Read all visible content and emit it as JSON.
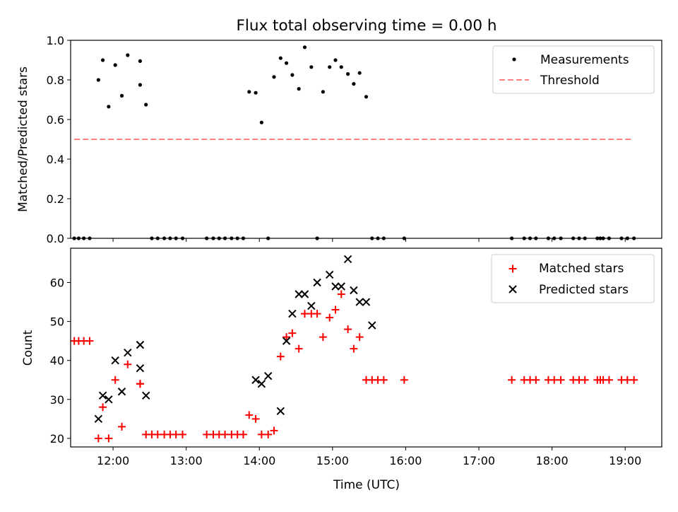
{
  "title": "Flux total observing time = 0.00 h",
  "chart_data": [
    {
      "type": "scatter",
      "panel": "top",
      "title": "Flux total observing time = 0.00 h",
      "ylabel": "Matched/Predicted stars",
      "xlabel": "",
      "xlim": [
        11.42,
        19.5
      ],
      "ylim": [
        0,
        1.0
      ],
      "yticks": [
        0.0,
        0.2,
        0.4,
        0.6,
        0.8,
        1.0
      ],
      "ytick_labels": [
        "0.0",
        "0.2",
        "0.4",
        "0.6",
        "0.8",
        "1.0"
      ],
      "legend_position": "top-right",
      "legend": [
        "Measurements",
        "Threshold"
      ],
      "threshold": {
        "name": "Threshold",
        "y": 0.5,
        "x": [
          11.47,
          19.08
        ],
        "color": "#ff8080"
      },
      "series": [
        {
          "name": "Measurements",
          "color": "#000000",
          "x": [
            11.47,
            11.53,
            11.6,
            11.68,
            11.8,
            11.86,
            11.94,
            12.03,
            12.12,
            12.2,
            12.37,
            12.37,
            12.45,
            12.53,
            12.61,
            12.7,
            12.78,
            12.86,
            12.95,
            13.28,
            13.37,
            13.45,
            13.53,
            13.62,
            13.7,
            13.78,
            13.86,
            13.95,
            14.03,
            14.12,
            14.2,
            14.29,
            14.37,
            14.45,
            14.54,
            14.62,
            14.71,
            14.79,
            14.87,
            14.96,
            15.04,
            15.12,
            15.21,
            15.29,
            15.37,
            15.46,
            15.54,
            15.62,
            15.7,
            15.98,
            17.45,
            17.62,
            17.7,
            17.78,
            17.95,
            18.03,
            18.12,
            18.29,
            18.37,
            18.45,
            18.62,
            18.66,
            18.7,
            18.78,
            18.95,
            19.03,
            19.12
          ],
          "y": [
            0,
            0,
            0,
            0,
            0.8,
            0.9,
            0.665,
            0.875,
            0.72,
            0.925,
            0.775,
            0.895,
            0.675,
            0,
            0,
            0,
            0,
            0,
            0,
            0,
            0,
            0,
            0,
            0,
            0,
            0,
            0.74,
            0.735,
            0.585,
            0,
            0.815,
            0.91,
            0.885,
            0.825,
            0.755,
            0.965,
            0.865,
            0,
            0.74,
            0.865,
            0.9,
            0.865,
            0.83,
            0.78,
            0.835,
            0.715,
            0,
            0,
            0,
            0,
            0,
            0,
            0,
            0,
            0,
            0,
            0,
            0,
            0,
            0,
            0,
            0,
            0,
            0,
            0,
            0,
            0
          ]
        }
      ]
    },
    {
      "type": "scatter",
      "panel": "bottom",
      "xlabel": "Time (UTC)",
      "ylabel": "Count",
      "xlim": [
        11.42,
        19.5
      ],
      "ylim": [
        17.8,
        68.8
      ],
      "xticks": [
        12,
        13,
        14,
        15,
        16,
        17,
        18,
        19
      ],
      "xtick_labels": [
        "12:00",
        "13:00",
        "14:00",
        "15:00",
        "16:00",
        "17:00",
        "18:00",
        "19:00"
      ],
      "yticks": [
        20,
        30,
        40,
        50,
        60
      ],
      "ytick_labels": [
        "20",
        "30",
        "40",
        "50",
        "60"
      ],
      "legend_position": "top-right",
      "legend": [
        "Matched stars",
        "Predicted stars"
      ],
      "series": [
        {
          "name": "Matched stars",
          "marker": "plus",
          "color": "#ff0000",
          "x": [
            11.47,
            11.53,
            11.6,
            11.68,
            11.8,
            11.86,
            11.94,
            12.03,
            12.12,
            12.2,
            12.37,
            12.37,
            12.45,
            12.53,
            12.61,
            12.7,
            12.78,
            12.86,
            12.95,
            13.28,
            13.37,
            13.45,
            13.53,
            13.62,
            13.7,
            13.78,
            13.86,
            13.95,
            14.03,
            14.12,
            14.2,
            14.29,
            14.37,
            14.45,
            14.54,
            14.62,
            14.71,
            14.79,
            14.87,
            14.96,
            15.04,
            15.12,
            15.21,
            15.29,
            15.37,
            15.46,
            15.54,
            15.62,
            15.7,
            15.98,
            17.45,
            17.62,
            17.7,
            17.78,
            17.95,
            18.03,
            18.12,
            18.29,
            18.37,
            18.45,
            18.62,
            18.66,
            18.7,
            18.78,
            18.95,
            19.03,
            19.12
          ],
          "y": [
            45,
            45,
            45,
            45,
            20,
            28,
            20,
            35,
            23,
            39,
            34,
            34,
            21,
            21,
            21,
            21,
            21,
            21,
            21,
            21,
            21,
            21,
            21,
            21,
            21,
            21,
            26,
            25,
            21,
            21,
            22,
            41,
            46,
            47,
            43,
            52,
            52,
            52,
            46,
            51,
            53,
            57,
            48,
            43,
            46,
            35,
            35,
            35,
            35,
            35,
            35,
            35,
            35,
            35,
            35,
            35,
            35,
            35,
            35,
            35,
            35,
            35,
            35,
            35,
            35,
            35,
            35
          ]
        },
        {
          "name": "Predicted stars",
          "marker": "x",
          "color": "#000000",
          "x": [
            11.8,
            11.86,
            11.94,
            12.03,
            12.12,
            12.2,
            12.37,
            12.37,
            12.45,
            13.95,
            14.03,
            14.12,
            14.29,
            14.37,
            14.45,
            14.54,
            14.62,
            14.71,
            14.79,
            14.96,
            15.04,
            15.12,
            15.21,
            15.29,
            15.37,
            15.46,
            15.54
          ],
          "y": [
            25,
            31,
            30,
            40,
            32,
            42,
            44,
            38,
            31,
            35,
            34,
            36,
            27,
            45,
            52,
            57,
            57,
            54,
            60,
            62,
            59,
            59,
            66,
            58,
            55,
            55,
            49
          ]
        }
      ]
    }
  ]
}
